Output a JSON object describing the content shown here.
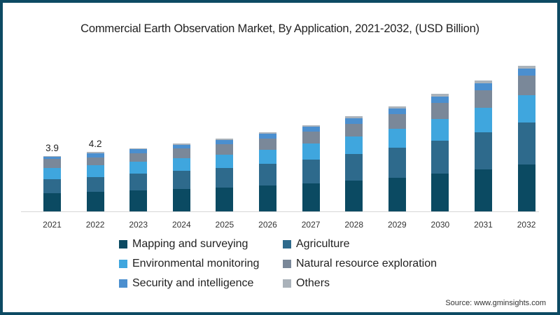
{
  "chart_data": {
    "type": "bar",
    "stacked": true,
    "title": "Commercial Earth Observation Market, By Application, 2021-2032,  (USD Billion)",
    "xlabel": "",
    "ylabel": "USD Billion",
    "categories": [
      "2021",
      "2022",
      "2023",
      "2024",
      "2025",
      "2026",
      "2027",
      "2028",
      "2029",
      "2030",
      "2031",
      "2032"
    ],
    "series": [
      {
        "name": "Mapping and surveying",
        "color": "#0b4a62",
        "values": [
          1.3,
          1.4,
          1.5,
          1.6,
          1.7,
          1.85,
          2.0,
          2.2,
          2.4,
          2.65,
          2.95,
          3.3
        ]
      },
      {
        "name": "Agriculture",
        "color": "#2e6a8c",
        "values": [
          1.0,
          1.05,
          1.15,
          1.25,
          1.35,
          1.5,
          1.65,
          1.85,
          2.1,
          2.35,
          2.65,
          3.0
        ]
      },
      {
        "name": "Environmental monitoring",
        "color": "#3fa6de",
        "values": [
          0.75,
          0.8,
          0.85,
          0.9,
          0.95,
          1.0,
          1.15,
          1.25,
          1.35,
          1.55,
          1.75,
          1.9
        ]
      },
      {
        "name": "Natural resource exploration",
        "color": "#7a8899",
        "values": [
          0.65,
          0.55,
          0.6,
          0.7,
          0.75,
          0.8,
          0.85,
          0.9,
          1.05,
          1.1,
          1.2,
          1.4
        ]
      },
      {
        "name": "Security and intelligence",
        "color": "#4b8fcf",
        "values": [
          0.15,
          0.3,
          0.3,
          0.25,
          0.3,
          0.35,
          0.35,
          0.4,
          0.4,
          0.45,
          0.5,
          0.5
        ]
      },
      {
        "name": "Others",
        "color": "#aab2ba",
        "values": [
          0.05,
          0.1,
          0.05,
          0.1,
          0.1,
          0.1,
          0.1,
          0.15,
          0.15,
          0.2,
          0.2,
          0.2
        ]
      }
    ],
    "totals": [
      3.9,
      4.2,
      4.45,
      4.8,
      5.15,
      5.6,
      6.1,
      6.75,
      7.45,
      8.3,
      9.25,
      10.3
    ],
    "data_labels": [
      {
        "category": "2021",
        "text": "3.9"
      },
      {
        "category": "2022",
        "text": "4.2"
      }
    ],
    "grid": false,
    "legend_position": "bottom"
  },
  "title": "Commercial Earth Observation Market, By Application, 2021-2032,  (USD Billion)",
  "legend": [
    {
      "label": "Mapping and surveying",
      "color": "#0b4a62"
    },
    {
      "label": "Agriculture",
      "color": "#2e6a8c"
    },
    {
      "label": "Environmental monitoring",
      "color": "#3fa6de"
    },
    {
      "label": "Natural resource exploration",
      "color": "#7a8899"
    },
    {
      "label": "Security and intelligence",
      "color": "#4b8fcf"
    },
    {
      "label": "Others",
      "color": "#aab2ba"
    }
  ],
  "labels": {
    "bar_2021": "3.9",
    "bar_2022": "4.2"
  },
  "source": "Source: www.gminsights.com"
}
